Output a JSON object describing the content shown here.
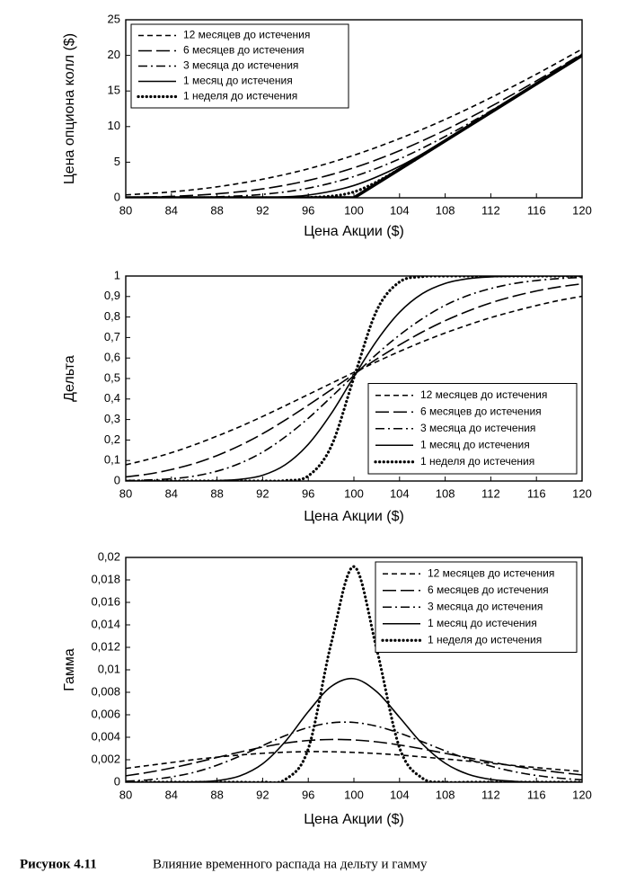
{
  "chart_data": [
    {
      "type": "line",
      "xlabel": "Цена Акции ($)",
      "ylabel": "Цена опциона колл ($)",
      "x": [
        80,
        84,
        88,
        92,
        96,
        100,
        104,
        108,
        112,
        116,
        120
      ],
      "xlim": [
        80,
        120
      ],
      "xticks": [
        80,
        84,
        88,
        92,
        96,
        100,
        104,
        108,
        112,
        116,
        120
      ],
      "ylim": [
        0,
        25
      ],
      "yticks": [
        0,
        5,
        10,
        15,
        20,
        25
      ],
      "legend": "upper left",
      "grid": false,
      "series": [
        {
          "name": "12 месяцев до истечения",
          "color": "#000000",
          "style": "dashed",
          "values": [
            0.41,
            0.83,
            1.54,
            2.61,
            4.07,
            5.98,
            8.31,
            11.01,
            14.06,
            17.36,
            20.89
          ]
        },
        {
          "name": "6 месяцев до истечения",
          "color": "#000000",
          "style": "longdash",
          "values": [
            0.06,
            0.2,
            0.56,
            1.25,
            2.44,
            4.22,
            6.61,
            9.51,
            12.82,
            16.42,
            20.21
          ]
        },
        {
          "name": "3 месяца до истечения",
          "color": "#000000",
          "style": "dashdot",
          "values": [
            0,
            0.02,
            0.14,
            0.48,
            1.35,
            2.99,
            5.46,
            8.62,
            12.22,
            16.08,
            20.01
          ]
        },
        {
          "name": "1 месяц до истечения",
          "color": "#000000",
          "style": "solid",
          "values": [
            0,
            0,
            0,
            0.04,
            0.38,
            1.73,
            4.42,
            8.07,
            12,
            16,
            20
          ]
        },
        {
          "name": "1 неделя до истечения",
          "color": "#000000",
          "style": "dotted",
          "values": [
            0,
            0,
            0,
            0,
            0.02,
            0.83,
            4.03,
            8,
            12,
            16,
            20
          ]
        },
        {
          "color": "#000000",
          "style": "thick",
          "values": [
            0,
            0,
            0,
            0,
            0,
            0,
            4,
            8,
            12,
            16,
            20
          ]
        }
      ]
    },
    {
      "type": "line",
      "xlabel": "Цена Акции ($)",
      "ylabel": "Дельта",
      "x": [
        80,
        82,
        84,
        86,
        88,
        90,
        92,
        94,
        96,
        98,
        100,
        102,
        104,
        106,
        108,
        110,
        112,
        114,
        116,
        118,
        120
      ],
      "xlim": [
        80,
        120
      ],
      "xticks": [
        80,
        84,
        88,
        92,
        96,
        100,
        104,
        108,
        112,
        116,
        120
      ],
      "ylim": [
        0,
        1
      ],
      "yticks": [
        0,
        {
          "value": 0.1,
          "label": "0,1"
        },
        {
          "value": 0.2,
          "label": "0,2"
        },
        {
          "value": 0.3,
          "label": "0,3"
        },
        {
          "value": 0.4,
          "label": "0,4"
        },
        {
          "value": 0.5,
          "label": "0,5"
        },
        {
          "value": 0.6,
          "label": "0,6"
        },
        {
          "value": 0.7,
          "label": "0,7"
        },
        {
          "value": 0.8,
          "label": "0,8"
        },
        {
          "value": 0.9,
          "label": "0,9"
        },
        1
      ],
      "legend": "lower right",
      "grid": false,
      "series": [
        {
          "name": "12 месяцев до истечения",
          "color": "#000000",
          "style": "dashed",
          "values": [
            0.079,
            0.106,
            0.138,
            0.176,
            0.219,
            0.265,
            0.315,
            0.368,
            0.422,
            0.476,
            0.53,
            0.582,
            0.632,
            0.679,
            0.722,
            0.761,
            0.797,
            0.828,
            0.856,
            0.881,
            0.901
          ]
        },
        {
          "name": "6 месяцев до истечения",
          "color": "#000000",
          "style": "longdash",
          "values": [
            0.02,
            0.034,
            0.056,
            0.085,
            0.124,
            0.173,
            0.231,
            0.298,
            0.37,
            0.445,
            0.521,
            0.595,
            0.664,
            0.727,
            0.782,
            0.829,
            0.869,
            0.901,
            0.927,
            0.947,
            0.962
          ]
        },
        {
          "name": "3 месяца до истечения",
          "color": "#000000",
          "style": "dashdot",
          "values": [
            0.002,
            0.005,
            0.011,
            0.024,
            0.048,
            0.086,
            0.141,
            0.216,
            0.306,
            0.409,
            0.515,
            0.619,
            0.712,
            0.792,
            0.857,
            0.905,
            0.939,
            0.963,
            0.978,
            0.988,
            0.993
          ]
        },
        {
          "name": "1 месяц до истечения",
          "color": "#000000",
          "style": "solid",
          "values": [
            0,
            0,
            0,
            0,
            0.002,
            0.008,
            0.028,
            0.08,
            0.179,
            0.328,
            0.509,
            0.684,
            0.823,
            0.914,
            0.964,
            0.987,
            0.996,
            0.999,
            1,
            1,
            1
          ]
        },
        {
          "name": "1 неделя до истечения",
          "color": "#000000",
          "style": "dotted",
          "values": [
            0,
            0,
            0,
            0,
            0,
            0,
            0,
            0.002,
            0.025,
            0.168,
            0.504,
            0.832,
            0.971,
            0.997,
            1,
            1,
            1,
            1,
            1,
            1,
            1
          ]
        }
      ]
    },
    {
      "type": "line",
      "xlabel": "Цена Акции ($)",
      "ylabel": "Гамма",
      "x": [
        80,
        82,
        84,
        86,
        88,
        90,
        92,
        94,
        96,
        98,
        100,
        102,
        104,
        106,
        108,
        110,
        112,
        114,
        116,
        118,
        120
      ],
      "xlim": [
        80,
        120
      ],
      "xticks": [
        80,
        84,
        88,
        92,
        96,
        100,
        104,
        108,
        112,
        116,
        120
      ],
      "ylim": [
        0,
        0.02
      ],
      "yticks": [
        0,
        {
          "value": 0.002,
          "label": "0,002"
        },
        {
          "value": 0.004,
          "label": "0,004"
        },
        {
          "value": 0.006,
          "label": "0,006"
        },
        {
          "value": 0.008,
          "label": "0,008"
        },
        {
          "value": 0.01,
          "label": "0,01"
        },
        {
          "value": 0.012,
          "label": "0,012"
        },
        {
          "value": 0.014,
          "label": "0,014"
        },
        {
          "value": 0.016,
          "label": "0,016"
        },
        {
          "value": 0.018,
          "label": "0,018"
        },
        {
          "value": 0.02,
          "label": "0,02"
        }
      ],
      "legend": "upper right",
      "grid": false,
      "series": [
        {
          "name": "12 месяцев до истечения",
          "color": "#000000",
          "style": "dashed",
          "values": [
            0.00123,
            0.00149,
            0.00175,
            0.00201,
            0.00223,
            0.00242,
            0.00257,
            0.00267,
            0.00272,
            0.00271,
            0.00265,
            0.00255,
            0.00242,
            0.00225,
            0.00207,
            0.00188,
            0.00168,
            0.00149,
            0.0013,
            0.00112,
            0.00096
          ]
        },
        {
          "name": "6 месяцев до истечения",
          "color": "#000000",
          "style": "longdash",
          "values": [
            0.00057,
            0.00088,
            0.00126,
            0.00171,
            0.0022,
            0.00268,
            0.00312,
            0.00348,
            0.00371,
            0.0038,
            0.00376,
            0.00359,
            0.00331,
            0.00296,
            0.00257,
            0.00218,
            0.00179,
            0.00144,
            0.00113,
            0.00087,
            0.00065
          ]
        },
        {
          "name": "3 месяца до истечения",
          "color": "#000000",
          "style": "dashdot",
          "values": [
            9e-05,
            0.00021,
            0.00047,
            0.00088,
            0.00151,
            0.00232,
            0.00325,
            0.00415,
            0.00487,
            0.00528,
            0.00532,
            0.00498,
            0.00437,
            0.0036,
            0.00279,
            0.00205,
            0.00143,
            0.00095,
            0.0006,
            0.00036,
            0.00021
          ]
        },
        {
          "name": "1 месяц до истечения",
          "color": "#000000",
          "style": "solid",
          "values": [
            0,
            0,
            0,
            3e-05,
            0.00014,
            0.00056,
            0.00164,
            0.00364,
            0.00628,
            0.00851,
            0.00921,
            0.00805,
            0.00577,
            0.00341,
            0.00169,
            0.00071,
            0.00025,
            8e-05,
            0,
            0,
            0
          ]
        },
        {
          "name": "1 неделя до истечения",
          "color": "#000000",
          "style": "dotted",
          "values": [
            0,
            0,
            0,
            0,
            0,
            0,
            0,
            0.00025,
            0.00297,
            0.01233,
            0.01918,
            0.01183,
            0.00306,
            0.00036,
            0,
            0,
            0,
            0,
            0,
            0,
            0
          ]
        }
      ]
    }
  ],
  "caption": {
    "label": "Рисунок 4.11",
    "text": "Влияние временного распада на дельту и гамму"
  }
}
